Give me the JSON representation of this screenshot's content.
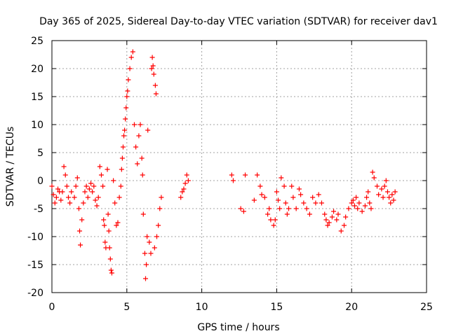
{
  "chart_data": {
    "type": "scatter",
    "title": "Day 365 of 2025, Sidereal Day-to-day VTEC variation (SDTVAR) for receiver dav1",
    "xlabel": "GPS time / hours",
    "ylabel": "SDTVAR / TECUs",
    "xlim": [
      0,
      25
    ],
    "ylim": [
      -20,
      25
    ],
    "xticks": [
      0,
      5,
      10,
      15,
      20,
      25
    ],
    "yticks": [
      -20,
      -15,
      -10,
      -5,
      0,
      5,
      10,
      15,
      20,
      25
    ],
    "grid": true,
    "marker": "+",
    "color": "#ff0000",
    "series": [
      {
        "name": "SDTVAR",
        "points": [
          [
            0.0,
            -1.0
          ],
          [
            0.1,
            -2.5
          ],
          [
            0.2,
            -4.0
          ],
          [
            0.3,
            -3.0
          ],
          [
            0.4,
            -1.5
          ],
          [
            0.5,
            -2.0
          ],
          [
            0.6,
            -3.5
          ],
          [
            0.7,
            -2.0
          ],
          [
            0.8,
            2.5
          ],
          [
            0.9,
            1.0
          ],
          [
            1.0,
            -1.0
          ],
          [
            1.1,
            -3.0
          ],
          [
            1.2,
            -4.0
          ],
          [
            1.3,
            -2.0
          ],
          [
            1.5,
            -3.0
          ],
          [
            1.6,
            -1.0
          ],
          [
            1.7,
            0.5
          ],
          [
            1.8,
            -5.0
          ],
          [
            1.85,
            -9.0
          ],
          [
            1.9,
            -11.5
          ],
          [
            2.0,
            -7.0
          ],
          [
            2.1,
            -4.0
          ],
          [
            2.2,
            -2.0
          ],
          [
            2.3,
            -1.0
          ],
          [
            2.4,
            -3.0
          ],
          [
            2.5,
            -1.5
          ],
          [
            2.6,
            -0.5
          ],
          [
            2.7,
            -2.0
          ],
          [
            2.8,
            -1.0
          ],
          [
            2.9,
            -3.5
          ],
          [
            3.0,
            -4.5
          ],
          [
            3.1,
            -3.0
          ],
          [
            3.2,
            2.5
          ],
          [
            3.3,
            1.0
          ],
          [
            3.4,
            -1.0
          ],
          [
            3.45,
            -7.0
          ],
          [
            3.5,
            -8.0
          ],
          [
            3.55,
            -11.0
          ],
          [
            3.6,
            -12.0
          ],
          [
            3.7,
            2.0
          ],
          [
            3.75,
            -6.0
          ],
          [
            3.8,
            -9.0
          ],
          [
            3.85,
            -12.0
          ],
          [
            3.9,
            -14.0
          ],
          [
            3.95,
            -16.0
          ],
          [
            4.0,
            -16.5
          ],
          [
            4.1,
            0.0
          ],
          [
            4.2,
            -4.0
          ],
          [
            4.3,
            -8.0
          ],
          [
            4.4,
            -7.5
          ],
          [
            4.5,
            -3.0
          ],
          [
            4.6,
            -1.0
          ],
          [
            4.65,
            2.0
          ],
          [
            4.7,
            4.0
          ],
          [
            4.75,
            6.0
          ],
          [
            4.8,
            8.0
          ],
          [
            4.85,
            9.0
          ],
          [
            4.9,
            11.0
          ],
          [
            4.95,
            13.0
          ],
          [
            5.0,
            15.0
          ],
          [
            5.05,
            16.0
          ],
          [
            5.1,
            18.0
          ],
          [
            5.2,
            20.0
          ],
          [
            5.3,
            22.0
          ],
          [
            5.4,
            23.0
          ],
          [
            5.5,
            10.0
          ],
          [
            5.6,
            6.0
          ],
          [
            5.7,
            3.0
          ],
          [
            5.8,
            8.0
          ],
          [
            5.9,
            10.0
          ],
          [
            6.0,
            4.0
          ],
          [
            6.05,
            1.0
          ],
          [
            6.1,
            -6.0
          ],
          [
            6.2,
            -13.0
          ],
          [
            6.25,
            -17.5
          ],
          [
            6.3,
            -15.0
          ],
          [
            6.35,
            -10.0
          ],
          [
            6.4,
            9.0
          ],
          [
            6.5,
            -11.0
          ],
          [
            6.6,
            -13.0
          ],
          [
            6.65,
            20.0
          ],
          [
            6.7,
            22.0
          ],
          [
            6.75,
            20.5
          ],
          [
            6.8,
            19.0
          ],
          [
            6.85,
            -12.0
          ],
          [
            6.9,
            17.0
          ],
          [
            6.95,
            15.5
          ],
          [
            7.0,
            -10.0
          ],
          [
            7.1,
            -8.0
          ],
          [
            7.2,
            -5.0
          ],
          [
            7.3,
            -3.0
          ],
          [
            8.6,
            -3.0
          ],
          [
            8.7,
            -2.0
          ],
          [
            8.8,
            -1.5
          ],
          [
            8.9,
            -0.5
          ],
          [
            9.0,
            1.0
          ],
          [
            9.1,
            0.0
          ],
          [
            12.0,
            1.0
          ],
          [
            12.1,
            0.0
          ],
          [
            12.6,
            -5.0
          ],
          [
            12.8,
            -5.5
          ],
          [
            12.9,
            1.0
          ],
          [
            13.5,
            -3.5
          ],
          [
            13.7,
            1.0
          ],
          [
            13.9,
            -1.0
          ],
          [
            14.0,
            -2.5
          ],
          [
            14.2,
            -3.0
          ],
          [
            14.4,
            -6.0
          ],
          [
            14.5,
            -5.0
          ],
          [
            14.6,
            -7.0
          ],
          [
            14.8,
            -8.0
          ],
          [
            14.9,
            -7.0
          ],
          [
            15.0,
            -2.0
          ],
          [
            15.1,
            -3.5
          ],
          [
            15.2,
            -5.0
          ],
          [
            15.3,
            0.5
          ],
          [
            15.5,
            -1.0
          ],
          [
            15.6,
            -4.0
          ],
          [
            15.7,
            -6.0
          ],
          [
            15.8,
            -5.0
          ],
          [
            16.0,
            -1.0
          ],
          [
            16.1,
            -3.0
          ],
          [
            16.3,
            -5.0
          ],
          [
            16.5,
            -1.5
          ],
          [
            16.6,
            -2.5
          ],
          [
            16.8,
            -4.0
          ],
          [
            17.0,
            -5.0
          ],
          [
            17.2,
            -6.0
          ],
          [
            17.4,
            -3.0
          ],
          [
            17.6,
            -4.0
          ],
          [
            17.8,
            -2.5
          ],
          [
            18.0,
            -4.0
          ],
          [
            18.2,
            -6.0
          ],
          [
            18.3,
            -7.0
          ],
          [
            18.4,
            -8.0
          ],
          [
            18.5,
            -7.5
          ],
          [
            18.7,
            -6.5
          ],
          [
            18.8,
            -5.5
          ],
          [
            19.0,
            -7.0
          ],
          [
            19.1,
            -6.0
          ],
          [
            19.3,
            -9.0
          ],
          [
            19.5,
            -8.0
          ],
          [
            19.6,
            -6.5
          ],
          [
            19.8,
            -5.0
          ],
          [
            20.0,
            -4.0
          ],
          [
            20.1,
            -3.5
          ],
          [
            20.2,
            -4.5
          ],
          [
            20.3,
            -3.0
          ],
          [
            20.4,
            -5.0
          ],
          [
            20.5,
            -4.0
          ],
          [
            20.7,
            -5.5
          ],
          [
            20.9,
            -4.5
          ],
          [
            21.0,
            -3.0
          ],
          [
            21.1,
            -2.0
          ],
          [
            21.2,
            -4.0
          ],
          [
            21.3,
            -5.0
          ],
          [
            21.4,
            1.5
          ],
          [
            21.5,
            0.5
          ],
          [
            21.7,
            -1.0
          ],
          [
            21.8,
            -2.5
          ],
          [
            22.0,
            -1.5
          ],
          [
            22.1,
            -3.0
          ],
          [
            22.2,
            -1.0
          ],
          [
            22.3,
            0.0
          ],
          [
            22.4,
            -2.0
          ],
          [
            22.5,
            -3.0
          ],
          [
            22.6,
            -4.0
          ],
          [
            22.7,
            -2.5
          ],
          [
            22.8,
            -3.5
          ],
          [
            22.9,
            -2.0
          ]
        ]
      }
    ]
  }
}
